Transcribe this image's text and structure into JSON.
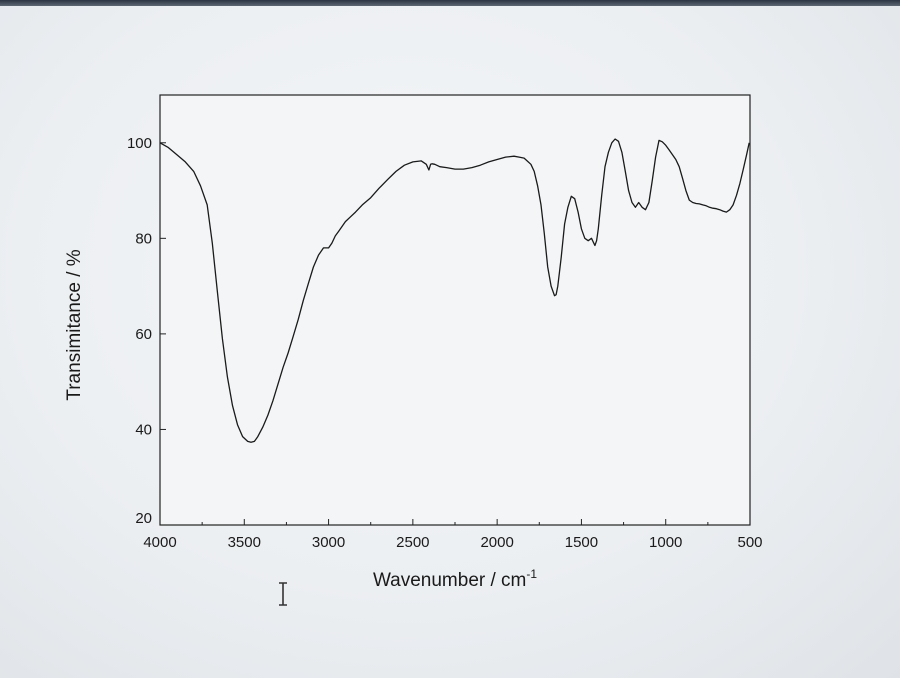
{
  "chart_data": {
    "type": "line",
    "title": "",
    "xlabel": "Wavenumber / cm",
    "xlabel_superscript": "-1",
    "ylabel": "Transimitance / %",
    "xlim": [
      4000,
      500
    ],
    "ylim": [
      20,
      110
    ],
    "x_reversed": true,
    "grid": false,
    "x_ticks": [
      4000,
      3500,
      3000,
      2500,
      2000,
      1500,
      1000,
      500
    ],
    "y_ticks": [
      20,
      40,
      60,
      80,
      100
    ],
    "series": [
      {
        "x": [
          4000,
          3950,
          3900,
          3850,
          3800,
          3760,
          3720,
          3690,
          3660,
          3630,
          3600,
          3570,
          3540,
          3510,
          3480,
          3460,
          3440,
          3420,
          3390,
          3360,
          3330,
          3300,
          3270,
          3240,
          3210,
          3180,
          3150,
          3120,
          3090,
          3060,
          3030,
          3000,
          2980,
          2960,
          2940,
          2920,
          2900,
          2870,
          2840,
          2800,
          2750,
          2700,
          2650,
          2600,
          2550,
          2500,
          2450,
          2420,
          2405,
          2395,
          2385,
          2370,
          2340,
          2300,
          2250,
          2200,
          2150,
          2100,
          2050,
          2000,
          1950,
          1900,
          1870,
          1840,
          1800,
          1780,
          1760,
          1740,
          1720,
          1700,
          1680,
          1660,
          1650,
          1640,
          1630,
          1620,
          1610,
          1600,
          1580,
          1560,
          1540,
          1520,
          1500,
          1480,
          1460,
          1440,
          1420,
          1410,
          1400,
          1380,
          1360,
          1340,
          1320,
          1300,
          1280,
          1260,
          1240,
          1220,
          1200,
          1180,
          1160,
          1140,
          1120,
          1100,
          1080,
          1060,
          1040,
          1020,
          1000,
          980,
          960,
          940,
          920,
          900,
          880,
          860,
          840,
          820,
          800,
          780,
          760,
          740,
          720,
          700,
          680,
          660,
          640,
          620,
          600,
          580,
          560,
          540,
          520,
          505
        ],
        "y": [
          100,
          99,
          97.5,
          96,
          94,
          91,
          87,
          79,
          69,
          59,
          51,
          45,
          41,
          38.5,
          37.5,
          37.3,
          37.5,
          38.5,
          40.5,
          43,
          46,
          49.5,
          53,
          56,
          59.5,
          63,
          67,
          70.5,
          74,
          76.5,
          78,
          78,
          79,
          80.5,
          81.5,
          82.5,
          83.5,
          84.5,
          85.5,
          87,
          88.5,
          90.5,
          92.3,
          94,
          95.3,
          96,
          96.2,
          95.5,
          94.3,
          95.5,
          95.6,
          95.5,
          95,
          94.8,
          94.5,
          94.5,
          94.8,
          95.3,
          96,
          96.5,
          97,
          97.2,
          97,
          96.8,
          95.5,
          94,
          91,
          87,
          81,
          74,
          70,
          68,
          68.2,
          70,
          73,
          76,
          79.5,
          83,
          86.5,
          88.8,
          88.3,
          85.5,
          82,
          80,
          79.5,
          80,
          78.5,
          79.5,
          82,
          89,
          95,
          98,
          100,
          100.8,
          100.3,
          98,
          94,
          90,
          87.5,
          86.5,
          87.5,
          86.5,
          86,
          87.5,
          92,
          97,
          100.5,
          100.2,
          99.5,
          98.5,
          97.5,
          96.5,
          95,
          92.5,
          90,
          88,
          87.5,
          87.3,
          87.2,
          87,
          86.8,
          86.5,
          86.3,
          86.2,
          86,
          85.7,
          85.5,
          86,
          87,
          89,
          91.5,
          94.5,
          97.5,
          100
        ]
      }
    ]
  },
  "cursor": {
    "icon": "text-cursor-icon"
  }
}
